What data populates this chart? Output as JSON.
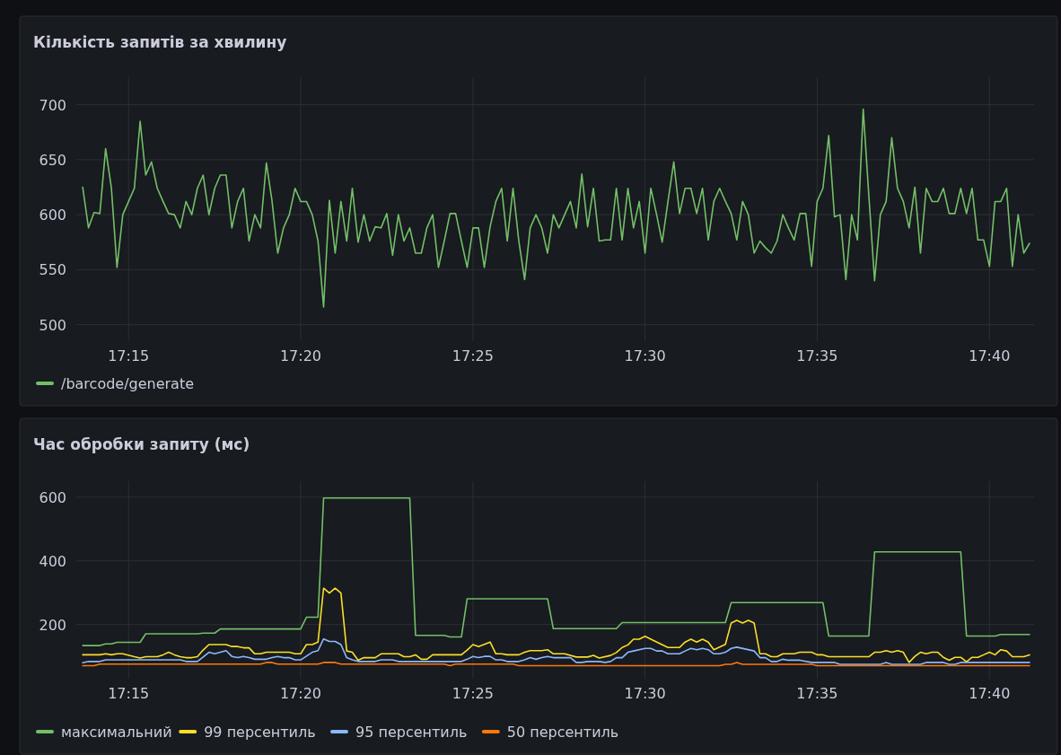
{
  "chart_data": [
    {
      "type": "line",
      "title": "Кількість запитів за хвилину",
      "grid": true,
      "legend": "bottom left",
      "xlim": [
        17.2247,
        17.6883
      ],
      "xticks": [
        {
          "value": 17.25,
          "label": "17:15"
        },
        {
          "value": 17.3333,
          "label": "17:20"
        },
        {
          "value": 17.4167,
          "label": "17:25"
        },
        {
          "value": 17.5,
          "label": "17:30"
        },
        {
          "value": 17.5833,
          "label": "17:35"
        },
        {
          "value": 17.6667,
          "label": "17:40"
        }
      ],
      "ylim": [
        485,
        725
      ],
      "yticks": [
        500,
        550,
        600,
        650,
        700
      ],
      "series": [
        {
          "name": "/barcode/generate",
          "color": "#73bf69",
          "x": [
            17.2278,
            17.2306,
            17.2333,
            17.2361,
            17.2389,
            17.2417,
            17.2444,
            17.2472,
            17.25,
            17.2528,
            17.2556,
            17.2583,
            17.2611,
            17.2639,
            17.2667,
            17.2694,
            17.2722,
            17.275,
            17.2778,
            17.2806,
            17.2833,
            17.2861,
            17.2889,
            17.2917,
            17.2944,
            17.2972,
            17.3,
            17.3028,
            17.3056,
            17.3083,
            17.3111,
            17.3139,
            17.3167,
            17.3194,
            17.3222,
            17.325,
            17.3278,
            17.3306,
            17.3333,
            17.3361,
            17.3389,
            17.3417,
            17.3444,
            17.3472,
            17.35,
            17.3528,
            17.3556,
            17.3583,
            17.3611,
            17.3639,
            17.3667,
            17.3694,
            17.3722,
            17.375,
            17.3778,
            17.3806,
            17.3833,
            17.3861,
            17.3889,
            17.3917,
            17.3944,
            17.3972,
            17.4,
            17.4028,
            17.4056,
            17.4083,
            17.4111,
            17.4139,
            17.4167,
            17.4194,
            17.4222,
            17.425,
            17.4278,
            17.4306,
            17.4333,
            17.4361,
            17.4389,
            17.4417,
            17.4444,
            17.4472,
            17.45,
            17.4528,
            17.4556,
            17.4583,
            17.4611,
            17.4639,
            17.4667,
            17.4694,
            17.4722,
            17.475,
            17.4778,
            17.4806,
            17.4833,
            17.4861,
            17.4889,
            17.4917,
            17.4944,
            17.4972,
            17.5,
            17.5028,
            17.5056,
            17.5083,
            17.5111,
            17.5139,
            17.5167,
            17.5194,
            17.5222,
            17.525,
            17.5278,
            17.5306,
            17.5333,
            17.5361,
            17.5389,
            17.5417,
            17.5444,
            17.5472,
            17.55,
            17.5528,
            17.5556,
            17.5583,
            17.5611,
            17.5639,
            17.5667,
            17.5694,
            17.5722,
            17.575,
            17.5778,
            17.5806,
            17.5833,
            17.5861,
            17.5889,
            17.5917,
            17.5944,
            17.5972,
            17.6,
            17.6028,
            17.6056,
            17.6083,
            17.6111,
            17.6139,
            17.6167,
            17.6194,
            17.6222,
            17.625,
            17.6278,
            17.6306,
            17.6333,
            17.6361,
            17.6389,
            17.6417,
            17.6444,
            17.6472,
            17.65,
            17.6528,
            17.6556,
            17.6583,
            17.6611,
            17.6639,
            17.6667,
            17.6694,
            17.6722,
            17.675,
            17.6778,
            17.6806,
            17.6833,
            17.6861
          ],
          "values": [
            625,
            588,
            602,
            601,
            660,
            624,
            552,
            600,
            612,
            624,
            685,
            636,
            648,
            624,
            612,
            601,
            600,
            588,
            612,
            600,
            624,
            636,
            600,
            624,
            636,
            636,
            588,
            612,
            624,
            576,
            600,
            588,
            647,
            613,
            565,
            588,
            600,
            624,
            612,
            612,
            600,
            576,
            516,
            613,
            565,
            612,
            576,
            624,
            575,
            600,
            576,
            589,
            588,
            601,
            563,
            600,
            576,
            588,
            565,
            565,
            588,
            600,
            552,
            576,
            601,
            601,
            576,
            552,
            588,
            588,
            552,
            589,
            612,
            624,
            576,
            624,
            576,
            541,
            588,
            600,
            588,
            565,
            600,
            588,
            600,
            612,
            588,
            637,
            589,
            624,
            576,
            577,
            577,
            624,
            577,
            624,
            588,
            612,
            565,
            624,
            600,
            575,
            612,
            648,
            601,
            624,
            624,
            601,
            624,
            577,
            612,
            624,
            612,
            601,
            577,
            612,
            600,
            565,
            576,
            570,
            565,
            576,
            600,
            588,
            577,
            601,
            601,
            553,
            612,
            624,
            672,
            598,
            600,
            541,
            600,
            577,
            696,
            618,
            540,
            600,
            612,
            670,
            624,
            612,
            588,
            625,
            565,
            624,
            612,
            612,
            624,
            601,
            601,
            624,
            601,
            624,
            577,
            577,
            553,
            612,
            612,
            624,
            553,
            600,
            565,
            574
          ]
        }
      ]
    },
    {
      "type": "line",
      "title": "Час обробки запиту (мс)",
      "grid": true,
      "legend": "bottom left",
      "xlim": [
        17.2247,
        17.6883
      ],
      "xticks": [
        {
          "value": 17.25,
          "label": "17:15"
        },
        {
          "value": 17.3333,
          "label": "17:20"
        },
        {
          "value": 17.4167,
          "label": "17:25"
        },
        {
          "value": 17.5,
          "label": "17:30"
        },
        {
          "value": 17.5833,
          "label": "17:35"
        },
        {
          "value": 17.6667,
          "label": "17:40"
        }
      ],
      "ylim": [
        30,
        650
      ],
      "yticks": [
        200,
        400,
        600
      ],
      "series": [
        {
          "name": "максимальний",
          "color": "#73bf69",
          "x": [
            17.2278,
            17.2361,
            17.2389,
            17.2417,
            17.2444,
            17.2556,
            17.2583,
            17.2833,
            17.2861,
            17.2917,
            17.2944,
            17.3333,
            17.3361,
            17.3417,
            17.3444,
            17.3861,
            17.3889,
            17.4028,
            17.4056,
            17.4111,
            17.4139,
            17.4528,
            17.4556,
            17.4861,
            17.4889,
            17.5389,
            17.5417,
            17.5861,
            17.5889,
            17.6083,
            17.6111,
            17.6528,
            17.6556,
            17.6694,
            17.6722,
            17.6861
          ],
          "values": [
            134,
            134,
            139,
            139,
            144,
            144,
            171,
            171,
            173,
            173,
            186,
            186,
            223,
            223,
            597,
            597,
            166,
            166,
            161,
            161,
            281,
            281,
            187,
            187,
            206,
            206,
            269,
            269,
            164,
            164,
            428,
            428,
            164,
            164,
            169,
            169
          ]
        },
        {
          "name": "99 персентиль",
          "color": "#fade2a",
          "x": [
            17.2278,
            17.2361,
            17.2389,
            17.2417,
            17.2444,
            17.2472,
            17.2528,
            17.2556,
            17.2583,
            17.2639,
            17.2667,
            17.2694,
            17.2722,
            17.275,
            17.2778,
            17.2806,
            17.2833,
            17.2861,
            17.2889,
            17.2972,
            17.3,
            17.3028,
            17.3056,
            17.3083,
            17.3111,
            17.3139,
            17.3167,
            17.3278,
            17.3306,
            17.3333,
            17.3361,
            17.3389,
            17.3417,
            17.3444,
            17.3472,
            17.35,
            17.3528,
            17.3556,
            17.3583,
            17.3611,
            17.3639,
            17.3694,
            17.3722,
            17.3806,
            17.3833,
            17.3861,
            17.3889,
            17.3917,
            17.3944,
            17.3972,
            17.4111,
            17.4139,
            17.4167,
            17.4194,
            17.425,
            17.4278,
            17.4306,
            17.4333,
            17.4389,
            17.4417,
            17.4444,
            17.45,
            17.4528,
            17.4556,
            17.4611,
            17.4667,
            17.4722,
            17.475,
            17.4778,
            17.4833,
            17.4861,
            17.4889,
            17.4917,
            17.4944,
            17.4972,
            17.5,
            17.5028,
            17.5111,
            17.5167,
            17.5194,
            17.5222,
            17.525,
            17.5278,
            17.5306,
            17.5333,
            17.5389,
            17.5417,
            17.5444,
            17.5472,
            17.55,
            17.5528,
            17.5556,
            17.5583,
            17.5611,
            17.5639,
            17.5667,
            17.5722,
            17.575,
            17.5806,
            17.5833,
            17.5861,
            17.5889,
            17.6083,
            17.6111,
            17.6139,
            17.6167,
            17.6194,
            17.6222,
            17.625,
            17.6278,
            17.6306,
            17.6333,
            17.6361,
            17.6389,
            17.6417,
            17.6444,
            17.6472,
            17.65,
            17.6528,
            17.6556,
            17.6583,
            17.6611,
            17.6639,
            17.6667,
            17.6694,
            17.6722,
            17.675,
            17.6778,
            17.6833,
            17.6861
          ],
          "values": [
            105,
            105,
            108,
            105,
            108,
            108,
            99,
            95,
            99,
            99,
            105,
            113,
            105,
            99,
            96,
            96,
            99,
            120,
            137,
            137,
            131,
            131,
            127,
            127,
            108,
            108,
            113,
            113,
            108,
            108,
            137,
            137,
            145,
            314,
            299,
            314,
            299,
            117,
            113,
            88,
            96,
            96,
            108,
            108,
            99,
            99,
            105,
            91,
            91,
            105,
            105,
            120,
            137,
            131,
            145,
            108,
            108,
            105,
            105,
            113,
            118,
            118,
            121,
            108,
            108,
            98,
            98,
            103,
            95,
            103,
            112,
            128,
            136,
            154,
            154,
            163,
            154,
            128,
            128,
            145,
            154,
            145,
            154,
            145,
            121,
            138,
            205,
            213,
            205,
            213,
            205,
            108,
            108,
            99,
            99,
            108,
            108,
            113,
            113,
            105,
            105,
            99,
            99,
            113,
            113,
            118,
            113,
            118,
            113,
            81,
            100,
            113,
            108,
            113,
            113,
            97,
            88,
            97,
            97,
            83,
            97,
            97,
            105,
            113,
            105,
            121,
            117,
            99,
            99,
            105
          ]
        },
        {
          "name": "95 персентиль",
          "color": "#8ab8ff",
          "x": [
            17.2278,
            17.2306,
            17.2361,
            17.2389,
            17.275,
            17.2778,
            17.2833,
            17.2861,
            17.2889,
            17.2917,
            17.2972,
            17.3,
            17.3028,
            17.3056,
            17.3083,
            17.3111,
            17.3167,
            17.3194,
            17.3222,
            17.325,
            17.3278,
            17.3306,
            17.3333,
            17.3389,
            17.3417,
            17.3444,
            17.3472,
            17.35,
            17.3528,
            17.3556,
            17.3583,
            17.3611,
            17.3694,
            17.3722,
            17.3778,
            17.3806,
            17.4111,
            17.4139,
            17.4167,
            17.4194,
            17.4222,
            17.425,
            17.4278,
            17.4306,
            17.4333,
            17.4389,
            17.4417,
            17.4444,
            17.4472,
            17.45,
            17.4528,
            17.4556,
            17.4639,
            17.4667,
            17.4694,
            17.4722,
            17.4778,
            17.4806,
            17.4833,
            17.4861,
            17.4889,
            17.4917,
            17.4944,
            17.5,
            17.5028,
            17.5056,
            17.5083,
            17.5111,
            17.5167,
            17.5194,
            17.5222,
            17.525,
            17.5278,
            17.5306,
            17.5333,
            17.5361,
            17.5389,
            17.5417,
            17.5444,
            17.5528,
            17.5556,
            17.5583,
            17.5611,
            17.5639,
            17.5667,
            17.5694,
            17.575,
            17.5806,
            17.5917,
            17.5944,
            17.6139,
            17.6167,
            17.6194,
            17.6333,
            17.6361,
            17.6444,
            17.6472,
            17.65,
            17.6528,
            17.6861
          ],
          "values": [
            80,
            84,
            84,
            89,
            89,
            84,
            84,
            98,
            113,
            108,
            118,
            100,
            96,
            100,
            96,
            91,
            91,
            96,
            100,
            96,
            96,
            89,
            89,
            113,
            118,
            155,
            147,
            147,
            137,
            96,
            89,
            84,
            84,
            89,
            89,
            84,
            84,
            91,
            100,
            96,
            100,
            100,
            89,
            89,
            84,
            84,
            89,
            96,
            91,
            96,
            100,
            96,
            96,
            81,
            81,
            84,
            84,
            81,
            84,
            96,
            96,
            113,
            117,
            125,
            125,
            117,
            117,
            108,
            108,
            117,
            125,
            121,
            125,
            121,
            108,
            108,
            113,
            125,
            129,
            117,
            96,
            96,
            84,
            84,
            91,
            88,
            88,
            81,
            81,
            75,
            75,
            81,
            75,
            75,
            81,
            81,
            75,
            75,
            81,
            81
          ]
        },
        {
          "name": "50 персентиль",
          "color": "#ff780a",
          "x": [
            17.2278,
            17.2333,
            17.2361,
            17.3139,
            17.3167,
            17.3194,
            17.3222,
            17.3417,
            17.3444,
            17.35,
            17.3528,
            17.4028,
            17.4056,
            17.4083,
            17.4361,
            17.4389,
            17.5361,
            17.5389,
            17.5417,
            17.5444,
            17.5472,
            17.5806,
            17.5833,
            17.6861
          ],
          "values": [
            71,
            71,
            76,
            76,
            81,
            81,
            76,
            76,
            81,
            81,
            76,
            76,
            71,
            76,
            76,
            71,
            71,
            75,
            75,
            81,
            75,
            75,
            71,
            71
          ]
        }
      ]
    }
  ]
}
